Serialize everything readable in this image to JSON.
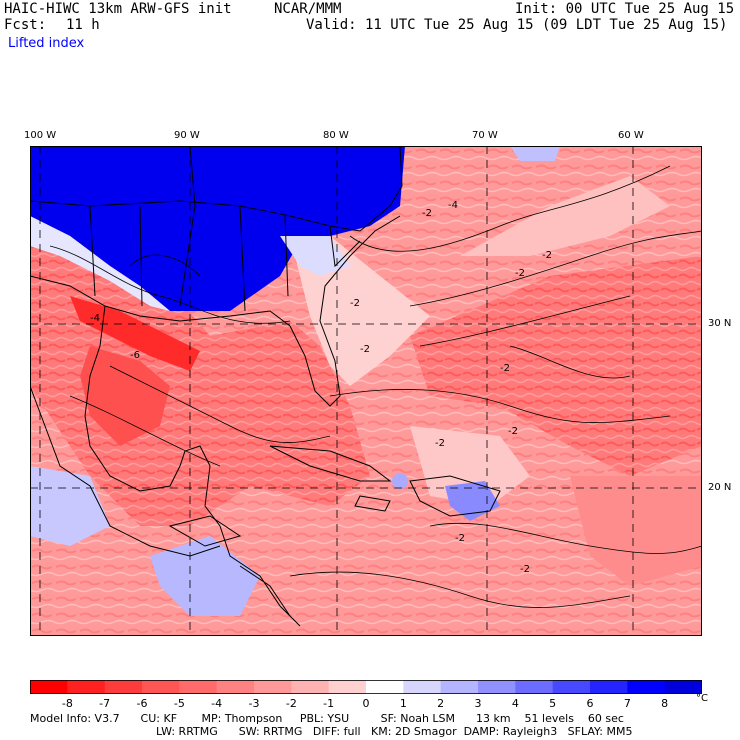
{
  "header": {
    "model": "HAIC-HIWC 13km ARW-GFS init",
    "center": "NCAR/MMM",
    "init": "Init: 00 UTC Tue 25 Aug 15",
    "fcst_label": "Fcst:",
    "fcst_value": "11 h",
    "valid": "Valid: 11 UTC Tue 25 Aug 15 (09 LDT Tue 25 Aug 15)",
    "field": "Lifted index"
  },
  "map": {
    "lon_labels": [
      "100 W",
      "90 W",
      "80 W",
      "70 W",
      "60 W"
    ],
    "lat_labels": [
      "30 N",
      "20 N"
    ],
    "contour_labels": [
      "-2",
      "-4",
      "-6",
      "-2",
      "-2",
      "-2",
      "-2",
      "-2",
      "-2",
      "-2",
      "-4",
      "-2",
      "-2"
    ]
  },
  "colorbar": {
    "ticks": [
      "-8",
      "-7",
      "-6",
      "-5",
      "-4",
      "-3",
      "-2",
      "-1",
      "0",
      "1",
      "2",
      "3",
      "4",
      "5",
      "6",
      "7",
      "8"
    ],
    "unit": "°C",
    "colors": [
      "#ff0000",
      "#ff2020",
      "#ff3c3c",
      "#ff5555",
      "#ff6b6b",
      "#ff8282",
      "#ff9999",
      "#ffb2b2",
      "#ffd0d0",
      "#ffffff",
      "#d6d6ff",
      "#b4b4ff",
      "#9090ff",
      "#6c6cff",
      "#4848ff",
      "#2424ff",
      "#0000ff",
      "#0000dc"
    ]
  },
  "info": {
    "line1": "Model Info: V3.7      CU: KF       MP: Thompson     PBL: YSU         SF: Noah LSM      13 km    51 levels    60 sec",
    "line2": "LW: RRTMG      SW: RRTMG   DIFF: full   KM: 2D Smagor  DAMP: Rayleigh3   SFLAY: MM5"
  }
}
